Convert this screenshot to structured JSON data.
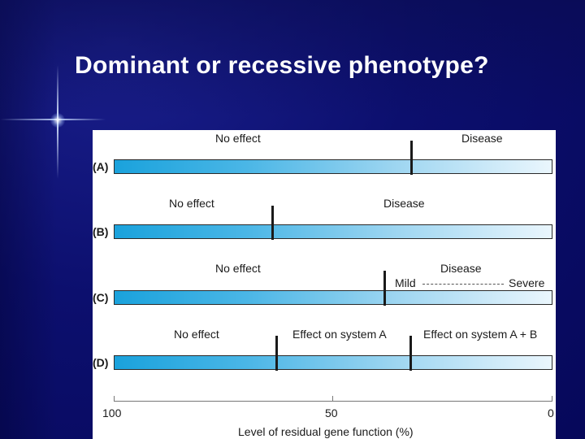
{
  "slide": {
    "title": "Dominant or recessive phenotype?"
  },
  "figure": {
    "rows": [
      {
        "label": "(A)",
        "texts": [
          "No effect",
          "Disease"
        ]
      },
      {
        "label": "(B)",
        "texts": [
          "No effect",
          "Disease"
        ]
      },
      {
        "label": "(C)",
        "texts": [
          "No effect",
          "Disease",
          "Mild",
          "Severe"
        ]
      },
      {
        "label": "(D)",
        "texts": [
          "No effect",
          "Effect on system A",
          "Effect on system A + B"
        ]
      }
    ],
    "axis": {
      "ticks": [
        "100",
        "50",
        "0"
      ],
      "label": "Level of residual gene function (%)"
    },
    "colors": {
      "bar_start": "#1aa2dc",
      "bar_end": "#eaf6fd",
      "background": "#0c0f6e"
    }
  }
}
